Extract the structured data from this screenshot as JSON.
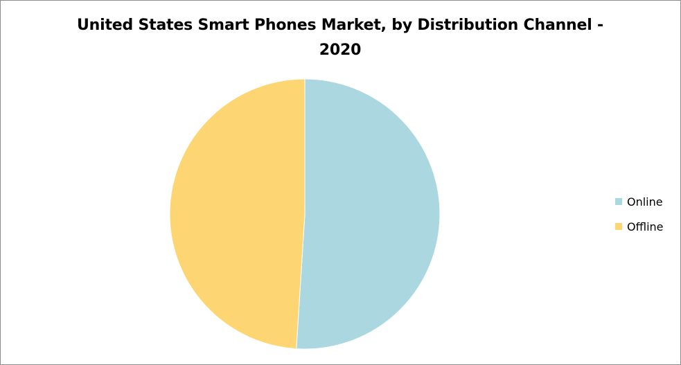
{
  "chart_data": {
    "type": "pie",
    "title": "United States Smart Phones Market,  by Distribution Channel - 2020",
    "categories": [
      "Online",
      "Offline"
    ],
    "values": [
      51,
      49
    ],
    "colors": [
      "#ABD8E0",
      "#FDD573"
    ],
    "legend_position": "right",
    "start_angle_deg": 0,
    "direction": "clockwise"
  }
}
